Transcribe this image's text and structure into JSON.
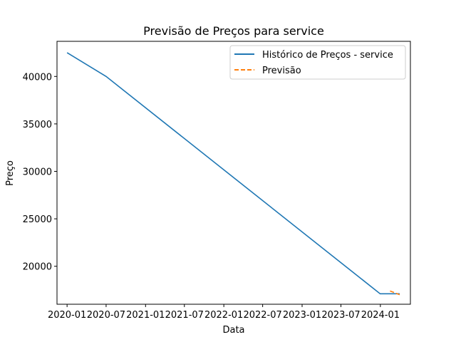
{
  "chart_data": {
    "type": "line",
    "title": "Previsão de Preços para service",
    "xlabel": "Data",
    "ylabel": "Preço",
    "x_tick_labels": [
      "2020-01",
      "2020-07",
      "2021-01",
      "2021-07",
      "2022-01",
      "2022-07",
      "2023-01",
      "2023-07",
      "2024-01"
    ],
    "y_tick_labels": [
      "20000",
      "25000",
      "30000",
      "35000",
      "40000"
    ],
    "xlim": [
      "2019-11-15",
      "2024-05-20"
    ],
    "ylim": [
      16000,
      43700
    ],
    "grid": false,
    "legend_position": "top-right",
    "series": [
      {
        "name": "Histórico de Preços - service",
        "color": "#1f77b4",
        "style": "solid",
        "x": [
          "2020-01-01",
          "2020-07-01",
          "2023-12-31",
          "2024-03-31"
        ],
        "y": [
          42500,
          40000,
          17100,
          17100
        ]
      },
      {
        "name": "Previsão",
        "color": "#ff7f0e",
        "style": "dashed",
        "x": [
          "2024-02-15",
          "2024-03-31"
        ],
        "y": [
          17400,
          17000
        ]
      }
    ]
  }
}
